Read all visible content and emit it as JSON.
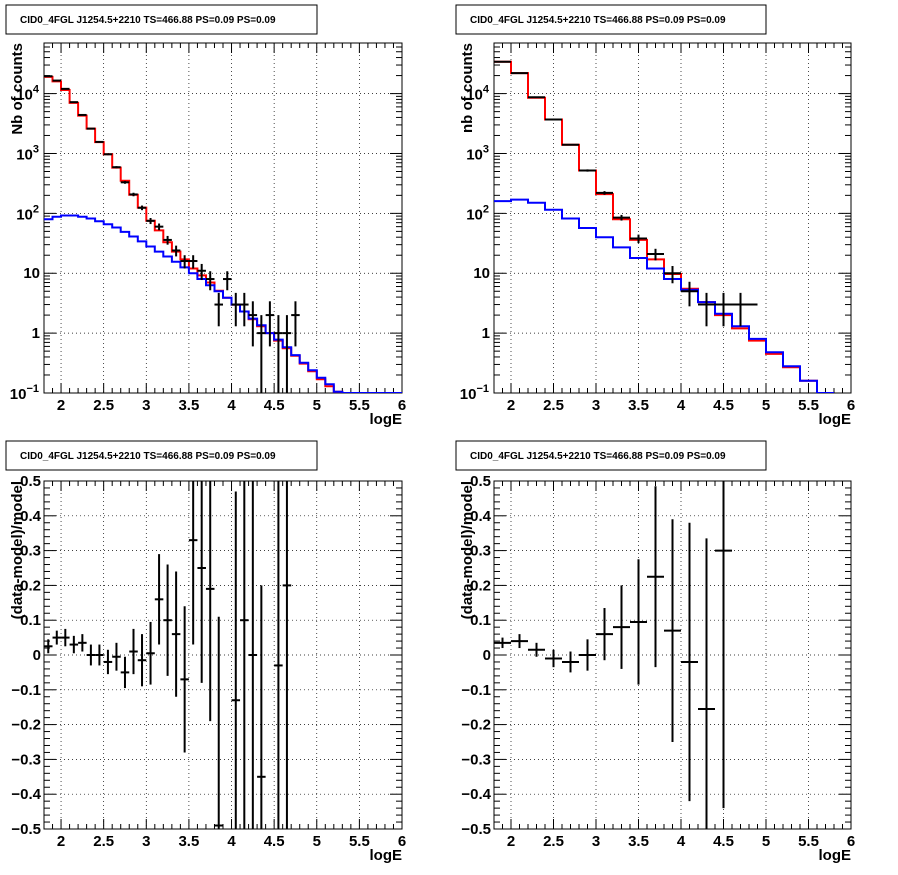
{
  "chart_data": [
    {
      "type": "line",
      "title": "CID0_4FGL J1254.5+2210 TS=466.88 PS=0.09 PS=0.09",
      "xlabel": "logE",
      "ylabel": "Nb of counts",
      "ylog": true,
      "xlim": [
        1.8,
        6.0
      ],
      "ylim": [
        0.1,
        70000
      ],
      "grid": true,
      "xticks": [
        "2",
        "2.5",
        "3",
        "3.5",
        "4",
        "4.5",
        "5",
        "5.5",
        "6"
      ],
      "yticks": [
        {
          "v": 0.1,
          "base": "10",
          "exp": "−1"
        },
        {
          "v": 1,
          "label": "1"
        },
        {
          "v": 10,
          "label": "10"
        },
        {
          "v": 100,
          "base": "10",
          "exp": "2"
        },
        {
          "v": 1000,
          "base": "10",
          "exp": "3"
        },
        {
          "v": 10000,
          "base": "10",
          "exp": "4"
        }
      ],
      "bin_edges": [
        1.8,
        1.9,
        2.0,
        2.1,
        2.2,
        2.3,
        2.4,
        2.5,
        2.6,
        2.7,
        2.8,
        2.9,
        3.0,
        3.1,
        3.2,
        3.3,
        3.4,
        3.5,
        3.6,
        3.7,
        3.8,
        3.9,
        4.0,
        4.1,
        4.2,
        4.3,
        4.4,
        4.5,
        4.6,
        4.7,
        4.8,
        4.9,
        5.0,
        5.1,
        5.2,
        5.3,
        5.4,
        5.5,
        5.6,
        5.7,
        5.8,
        5.9,
        6.0
      ],
      "series": [
        {
          "role": "total",
          "color": "#ff0000",
          "values": [
            19000,
            16000,
            11500,
            7000,
            4300,
            2600,
            1550,
            970,
            580,
            350,
            205,
            125,
            75,
            52,
            33,
            23,
            17,
            12,
            9.2,
            7.0,
            5.1,
            3.9,
            3.0,
            2.3,
            1.7,
            1.3,
            1.0,
            0.75,
            0.56,
            0.42,
            0.31,
            0.23,
            0.17,
            0.13,
            0.105,
            0.1,
            0.1,
            0.1,
            0.1,
            0.1,
            0.1,
            0.1
          ]
        },
        {
          "role": "source",
          "color": "#0000ff",
          "values": [
            80,
            88,
            92,
            92,
            88,
            82,
            74,
            66,
            58,
            49,
            41,
            34,
            28,
            23,
            19,
            15.5,
            12.5,
            10,
            8,
            6.3,
            5.0,
            3.9,
            3.0,
            2.3,
            1.75,
            1.35,
            1.0,
            0.78,
            0.58,
            0.43,
            0.32,
            0.24,
            0.18,
            0.14,
            0.105,
            0.1,
            0.1,
            0.1,
            0.1,
            0.1,
            0.1,
            0.1
          ]
        }
      ],
      "points": [
        {
          "x": 1.85,
          "y": 19500,
          "dx": 0.05,
          "dy": 140
        },
        {
          "x": 1.95,
          "y": 16500,
          "dx": 0.05,
          "dy": 130
        },
        {
          "x": 2.05,
          "y": 12000,
          "dx": 0.05,
          "dy": 110
        },
        {
          "x": 2.15,
          "y": 7200,
          "dx": 0.05,
          "dy": 85
        },
        {
          "x": 2.25,
          "y": 4400,
          "dx": 0.05,
          "dy": 66
        },
        {
          "x": 2.35,
          "y": 2600,
          "dx": 0.05,
          "dy": 51
        },
        {
          "x": 2.45,
          "y": 1560,
          "dx": 0.05,
          "dy": 40
        },
        {
          "x": 2.55,
          "y": 970,
          "dx": 0.05,
          "dy": 31
        },
        {
          "x": 2.65,
          "y": 590,
          "dx": 0.05,
          "dy": 24
        },
        {
          "x": 2.75,
          "y": 330,
          "dx": 0.05,
          "dy": 18
        },
        {
          "x": 2.85,
          "y": 207,
          "dx": 0.05,
          "dy": 14
        },
        {
          "x": 2.95,
          "y": 124,
          "dx": 0.05,
          "dy": 11
        },
        {
          "x": 3.05,
          "y": 75,
          "dx": 0.05,
          "dy": 8.7
        },
        {
          "x": 3.15,
          "y": 60,
          "dx": 0.05,
          "dy": 7.7
        },
        {
          "x": 3.25,
          "y": 36,
          "dx": 0.05,
          "dy": 6
        },
        {
          "x": 3.35,
          "y": 24,
          "dx": 0.05,
          "dy": 4.9
        },
        {
          "x": 3.45,
          "y": 16,
          "dx": 0.05,
          "dy": 4
        },
        {
          "x": 3.55,
          "y": 16,
          "dx": 0.05,
          "dy": 4
        },
        {
          "x": 3.65,
          "y": 11,
          "dx": 0.05,
          "dy": 3.3
        },
        {
          "x": 3.75,
          "y": 8,
          "dx": 0.05,
          "dy": 2.8
        },
        {
          "x": 3.85,
          "y": 3,
          "dx": 0.05,
          "dy": 1.7
        },
        {
          "x": 3.95,
          "y": 8,
          "dx": 0.05,
          "dy": 2.8
        },
        {
          "x": 4.05,
          "y": 3,
          "dx": 0.05,
          "dy": 1.7
        },
        {
          "x": 4.15,
          "y": 3,
          "dx": 0.05,
          "dy": 1.7
        },
        {
          "x": 4.25,
          "y": 2,
          "dx": 0.05,
          "dy": 1.4
        },
        {
          "x": 4.35,
          "y": 1,
          "dx": 0.05,
          "dy": 1
        },
        {
          "x": 4.45,
          "y": 2,
          "dx": 0.05,
          "dy": 1.4
        },
        {
          "x": 4.55,
          "y": 1,
          "dx": 0.05,
          "dy": 1
        },
        {
          "x": 4.65,
          "y": 1,
          "dx": 0.05,
          "dy": 1
        },
        {
          "x": 4.75,
          "y": 2,
          "dx": 0.05,
          "dy": 1.4
        }
      ]
    },
    {
      "type": "line",
      "title": "CID0_4FGL J1254.5+2210 TS=466.88 PS=0.09 PS=0.09",
      "xlabel": "logE",
      "ylabel": "nb of counts",
      "ylog": true,
      "xlim": [
        1.8,
        6.0
      ],
      "ylim": [
        0.1,
        70000
      ],
      "grid": true,
      "xticks": [
        "2",
        "2.5",
        "3",
        "3.5",
        "4",
        "4.5",
        "5",
        "5.5",
        "6"
      ],
      "yticks": [
        {
          "v": 0.1,
          "base": "10",
          "exp": "−1"
        },
        {
          "v": 1,
          "label": "1"
        },
        {
          "v": 10,
          "label": "10"
        },
        {
          "v": 100,
          "base": "10",
          "exp": "2"
        },
        {
          "v": 1000,
          "base": "10",
          "exp": "3"
        },
        {
          "v": 10000,
          "base": "10",
          "exp": "4"
        }
      ],
      "bin_edges": [
        1.8,
        2.0,
        2.2,
        2.4,
        2.6,
        2.8,
        3.0,
        3.2,
        3.4,
        3.6,
        3.8,
        4.0,
        4.2,
        4.4,
        4.6,
        4.8,
        5.0,
        5.2,
        5.4,
        5.6,
        5.8,
        6.0
      ],
      "series": [
        {
          "role": "total",
          "color": "#ff0000",
          "values": [
            34000,
            22000,
            8500,
            3700,
            1400,
            520,
            210,
            80,
            36,
            17,
            9.7,
            5.5,
            3.3,
            2.0,
            1.2,
            0.75,
            0.45,
            0.27,
            0.16,
            0.1
          ]
        },
        {
          "role": "source",
          "color": "#0000ff",
          "values": [
            160,
            170,
            150,
            115,
            82,
            57,
            40,
            27,
            18,
            12,
            8.0,
            5.3,
            3.3,
            2.1,
            1.3,
            0.8,
            0.48,
            0.28,
            0.16,
            0.1
          ]
        }
      ],
      "points": [
        {
          "x": 1.9,
          "y": 34000,
          "dx": 0.1,
          "dy": 185
        },
        {
          "x": 2.1,
          "y": 22000,
          "dx": 0.1,
          "dy": 148
        },
        {
          "x": 2.3,
          "y": 8700,
          "dx": 0.1,
          "dy": 93
        },
        {
          "x": 2.5,
          "y": 3700,
          "dx": 0.1,
          "dy": 61
        },
        {
          "x": 2.7,
          "y": 1400,
          "dx": 0.1,
          "dy": 37
        },
        {
          "x": 2.9,
          "y": 520,
          "dx": 0.1,
          "dy": 23
        },
        {
          "x": 3.1,
          "y": 220,
          "dx": 0.1,
          "dy": 15
        },
        {
          "x": 3.3,
          "y": 85,
          "dx": 0.1,
          "dy": 9.2
        },
        {
          "x": 3.5,
          "y": 38,
          "dx": 0.1,
          "dy": 6.2
        },
        {
          "x": 3.7,
          "y": 21,
          "dx": 0.1,
          "dy": 4.6
        },
        {
          "x": 3.9,
          "y": 10,
          "dx": 0.1,
          "dy": 3.2
        },
        {
          "x": 4.1,
          "y": 5,
          "dx": 0.1,
          "dy": 2.2
        },
        {
          "x": 4.3,
          "y": 3,
          "dx": 0.1,
          "dy": 1.7
        },
        {
          "x": 4.5,
          "y": 3,
          "dx": 0.1,
          "dy": 1.7
        },
        {
          "x": 4.7,
          "y": 3,
          "dx": 0.2,
          "dy": 1.7
        }
      ]
    },
    {
      "type": "scatter",
      "title": "CID0_4FGL J1254.5+2210 TS=466.88 PS=0.09 PS=0.09",
      "xlabel": "logE",
      "ylabel": "(data-model)/model",
      "ylog": false,
      "xlim": [
        1.8,
        6.0
      ],
      "ylim": [
        -0.5,
        0.5
      ],
      "grid": true,
      "xticks": [
        "2",
        "2.5",
        "3",
        "3.5",
        "4",
        "4.5",
        "5",
        "5.5",
        "6"
      ],
      "yticks": [
        "−0.5",
        "−0.4",
        "−0.3",
        "−0.2",
        "−0.1",
        "0",
        "0.1",
        "0.2",
        "0.3",
        "0.4",
        "0.5"
      ],
      "points": [
        {
          "x": 1.85,
          "y": 0.025,
          "dx": 0.05,
          "dy": 0.02
        },
        {
          "x": 1.95,
          "y": 0.05,
          "dx": 0.05,
          "dy": 0.02
        },
        {
          "x": 2.05,
          "y": 0.05,
          "dx": 0.05,
          "dy": 0.025
        },
        {
          "x": 2.15,
          "y": 0.03,
          "dx": 0.05,
          "dy": 0.025
        },
        {
          "x": 2.25,
          "y": 0.035,
          "dx": 0.05,
          "dy": 0.025
        },
        {
          "x": 2.35,
          "y": 0.0,
          "dx": 0.05,
          "dy": 0.03
        },
        {
          "x": 2.45,
          "y": 0.0,
          "dx": 0.05,
          "dy": 0.03
        },
        {
          "x": 2.55,
          "y": -0.02,
          "dx": 0.05,
          "dy": 0.035
        },
        {
          "x": 2.65,
          "y": -0.005,
          "dx": 0.05,
          "dy": 0.04
        },
        {
          "x": 2.75,
          "y": -0.05,
          "dx": 0.05,
          "dy": 0.045
        },
        {
          "x": 2.85,
          "y": 0.01,
          "dx": 0.05,
          "dy": 0.065
        },
        {
          "x": 2.95,
          "y": -0.015,
          "dx": 0.05,
          "dy": 0.075
        },
        {
          "x": 3.05,
          "y": 0.005,
          "dx": 0.05,
          "dy": 0.09
        },
        {
          "x": 3.15,
          "y": 0.16,
          "dx": 0.05,
          "dy": 0.13
        },
        {
          "x": 3.25,
          "y": 0.1,
          "dx": 0.05,
          "dy": 0.16
        },
        {
          "x": 3.35,
          "y": 0.06,
          "dx": 0.05,
          "dy": 0.18
        },
        {
          "x": 3.45,
          "y": -0.07,
          "dx": 0.05,
          "dy": 0.21
        },
        {
          "x": 3.55,
          "y": 0.33,
          "dx": 0.05,
          "dy": 0.3
        },
        {
          "x": 3.65,
          "y": 0.25,
          "dx": 0.05,
          "dy": 0.33
        },
        {
          "x": 3.75,
          "y": 0.19,
          "dx": 0.05,
          "dy": 0.38
        },
        {
          "x": 3.85,
          "y": -0.49,
          "dx": 0.05,
          "dy": 0.6
        },
        {
          "x": 4.05,
          "y": -0.13,
          "dx": 0.05,
          "dy": 0.6
        },
        {
          "x": 4.15,
          "y": 0.1,
          "dx": 0.05,
          "dy": 0.7
        },
        {
          "x": 4.25,
          "y": 0.0,
          "dx": 0.05,
          "dy": 0.7
        },
        {
          "x": 4.35,
          "y": -0.35,
          "dx": 0.05,
          "dy": 0.55
        },
        {
          "x": 4.55,
          "y": -0.03,
          "dx": 0.05,
          "dy": 0.9
        },
        {
          "x": 4.65,
          "y": 0.2,
          "dx": 0.05,
          "dy": 0.9
        }
      ]
    },
    {
      "type": "scatter",
      "title": "CID0_4FGL J1254.5+2210 TS=466.88 PS=0.09 PS=0.09",
      "xlabel": "logE",
      "ylabel": "(data-model)/model",
      "ylog": false,
      "xlim": [
        1.8,
        6.0
      ],
      "ylim": [
        -0.5,
        0.5
      ],
      "grid": true,
      "xticks": [
        "2",
        "2.5",
        "3",
        "3.5",
        "4",
        "4.5",
        "5",
        "5.5",
        "6"
      ],
      "yticks": [
        "−0.5",
        "−0.4",
        "−0.3",
        "−0.2",
        "−0.1",
        "0",
        "0.1",
        "0.2",
        "0.3",
        "0.4",
        "0.5"
      ],
      "points": [
        {
          "x": 1.9,
          "y": 0.035,
          "dx": 0.1,
          "dy": 0.015
        },
        {
          "x": 2.1,
          "y": 0.04,
          "dx": 0.1,
          "dy": 0.02
        },
        {
          "x": 2.3,
          "y": 0.015,
          "dx": 0.1,
          "dy": 0.02
        },
        {
          "x": 2.5,
          "y": -0.01,
          "dx": 0.1,
          "dy": 0.025
        },
        {
          "x": 2.7,
          "y": -0.02,
          "dx": 0.1,
          "dy": 0.03
        },
        {
          "x": 2.9,
          "y": 0.0,
          "dx": 0.1,
          "dy": 0.045
        },
        {
          "x": 3.1,
          "y": 0.06,
          "dx": 0.1,
          "dy": 0.075
        },
        {
          "x": 3.3,
          "y": 0.08,
          "dx": 0.1,
          "dy": 0.12
        },
        {
          "x": 3.5,
          "y": 0.095,
          "dx": 0.1,
          "dy": 0.18
        },
        {
          "x": 3.7,
          "y": 0.225,
          "dx": 0.1,
          "dy": 0.26
        },
        {
          "x": 3.9,
          "y": 0.07,
          "dx": 0.1,
          "dy": 0.32
        },
        {
          "x": 4.1,
          "y": -0.02,
          "dx": 0.1,
          "dy": 0.4
        },
        {
          "x": 4.3,
          "y": -0.155,
          "dx": 0.1,
          "dy": 0.49
        },
        {
          "x": 4.5,
          "y": 0.3,
          "dx": 0.1,
          "dy": 0.74
        }
      ]
    }
  ]
}
